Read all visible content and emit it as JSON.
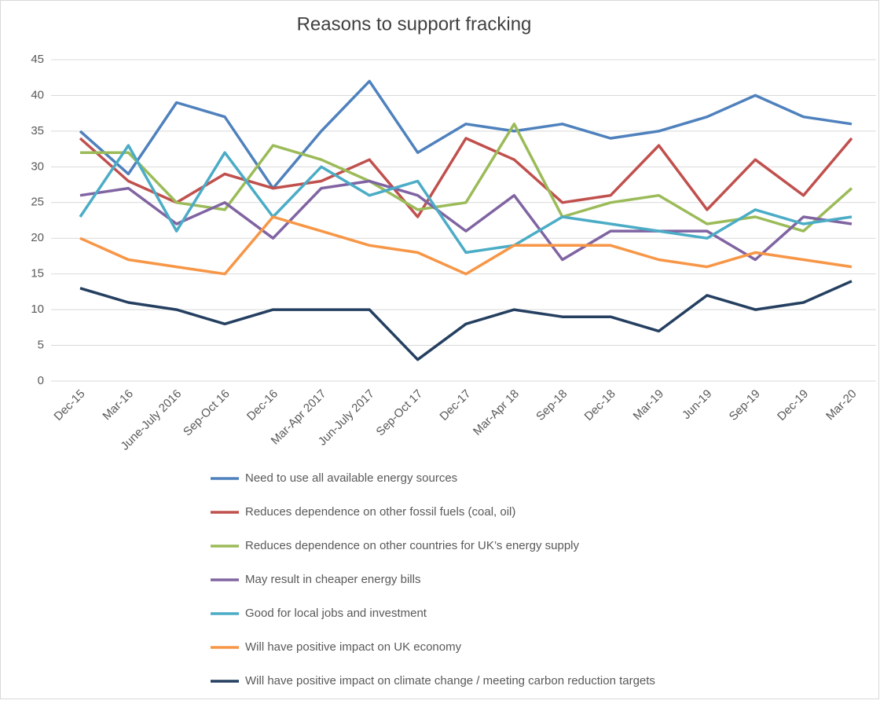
{
  "chart_data": {
    "type": "line",
    "title": "Reasons to support fracking",
    "categories": [
      "Dec-15",
      "Mar-16",
      "June-July 2016",
      "Sep-Oct 16",
      "Dec-16",
      "Mar-Apr 2017",
      "Jun-July 2017",
      "Sep-Oct 17",
      "Dec-17",
      "Mar-Apr 18",
      "Sep-18",
      "Dec-18",
      "Mar-19",
      "Jun-19",
      "Sep-19",
      "Dec-19",
      "Mar-20"
    ],
    "series": [
      {
        "name": "Need to use all available energy sources",
        "color": "#4f81bd",
        "values": [
          35,
          29,
          39,
          37,
          27,
          35,
          42,
          32,
          36,
          35,
          36,
          34,
          35,
          37,
          40,
          37,
          36
        ]
      },
      {
        "name": "Reduces dependence on other fossil fuels (coal, oil)",
        "color": "#c0504d",
        "values": [
          34,
          28,
          25,
          29,
          27,
          28,
          31,
          23,
          34,
          31,
          25,
          26,
          33,
          24,
          31,
          26,
          34
        ]
      },
      {
        "name": "Reduces dependence on other countries for UK’s energy supply",
        "color": "#9bbb59",
        "values": [
          32,
          32,
          25,
          24,
          33,
          31,
          28,
          24,
          25,
          36,
          23,
          25,
          26,
          22,
          23,
          21,
          27
        ]
      },
      {
        "name": "May result in cheaper energy bills",
        "color": "#8064a2",
        "values": [
          26,
          27,
          22,
          25,
          20,
          27,
          28,
          26,
          21,
          26,
          17,
          21,
          21,
          21,
          17,
          23,
          22
        ]
      },
      {
        "name": "Good for local jobs and investment",
        "color": "#4bacc6",
        "values": [
          23,
          33,
          21,
          32,
          23,
          30,
          26,
          28,
          18,
          19,
          23,
          22,
          21,
          20,
          24,
          22,
          23
        ]
      },
      {
        "name": "Will have positive impact on UK economy",
        "color": "#f79646",
        "values": [
          20,
          17,
          16,
          15,
          23,
          21,
          19,
          18,
          15,
          19,
          19,
          19,
          17,
          16,
          18,
          17,
          16
        ]
      },
      {
        "name": "Will have positive impact on climate change / meeting carbon reduction targets",
        "color": "#243f60",
        "values": [
          13,
          11,
          10,
          8,
          10,
          10,
          10,
          3,
          8,
          10,
          9,
          9,
          7,
          12,
          10,
          11,
          14
        ]
      }
    ],
    "ylim": [
      0,
      45
    ],
    "yticks": [
      0,
      5,
      10,
      15,
      20,
      25,
      30,
      35,
      40,
      45
    ],
    "grid": true
  }
}
